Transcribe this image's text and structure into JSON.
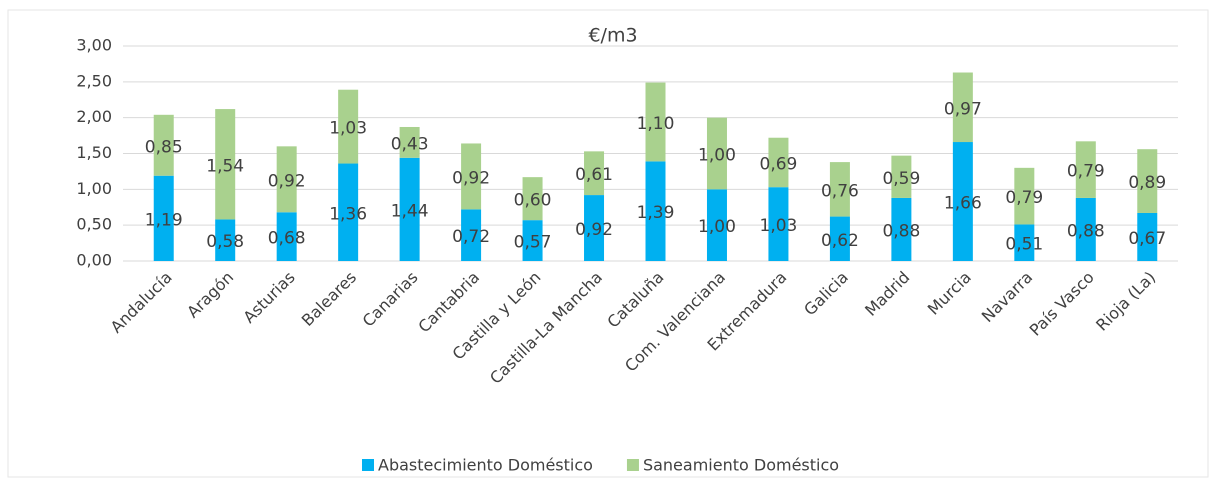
{
  "chart_data": {
    "type": "stacked_bar",
    "title": "€/m3",
    "categories": [
      "Andalucía",
      "Aragón",
      "Asturias",
      "Baleares",
      "Canarias",
      "Cantabria",
      "Castilla y León",
      "Castilla-La Mancha",
      "Cataluña",
      "Com. Valenciana",
      "Extremadura",
      "Galicia",
      "Madrid",
      "Murcia",
      "Navarra",
      "País Vasco",
      "Rioja (La)"
    ],
    "series": [
      {
        "name": "Abastecimiento Doméstico",
        "color": "#00b0f0",
        "values": [
          1.19,
          0.58,
          0.68,
          1.36,
          1.44,
          0.72,
          0.57,
          0.92,
          1.39,
          1.0,
          1.03,
          0.62,
          0.88,
          1.66,
          0.51,
          0.88,
          0.67
        ],
        "value_labels": [
          "1,19",
          "0,58",
          "0,68",
          "1,36",
          "1,44",
          "0,72",
          "0,57",
          "0,92",
          "1,39",
          "1,00",
          "1,03",
          "0,62",
          "0,88",
          "1,66",
          "0,51",
          "0,88",
          "0,67"
        ]
      },
      {
        "name": "Saneamiento Doméstico",
        "color": "#a9d18e",
        "values": [
          0.85,
          1.54,
          0.92,
          1.03,
          0.43,
          0.92,
          0.6,
          0.61,
          1.1,
          1.0,
          0.69,
          0.76,
          0.59,
          0.97,
          0.79,
          0.79,
          0.89
        ],
        "value_labels": [
          "0,85",
          "1,54",
          "0,92",
          "1,03",
          "0,43",
          "0,92",
          "0,60",
          "0,61",
          "1,10",
          "1,00",
          "0,69",
          "0,76",
          "0,59",
          "0,97",
          "0,79",
          "0,79",
          "0,89"
        ]
      }
    ],
    "ylim": [
      0,
      3
    ],
    "yticks": [
      {
        "value": 0,
        "label": "0,00"
      },
      {
        "value": 0.5,
        "label": "0,50"
      },
      {
        "value": 1,
        "label": "1,00"
      },
      {
        "value": 1.5,
        "label": "1,50"
      },
      {
        "value": 2,
        "label": "2,00"
      },
      {
        "value": 2.5,
        "label": "2,50"
      },
      {
        "value": 3,
        "label": "3,00"
      }
    ],
    "grid": true,
    "legend": "bottom"
  }
}
